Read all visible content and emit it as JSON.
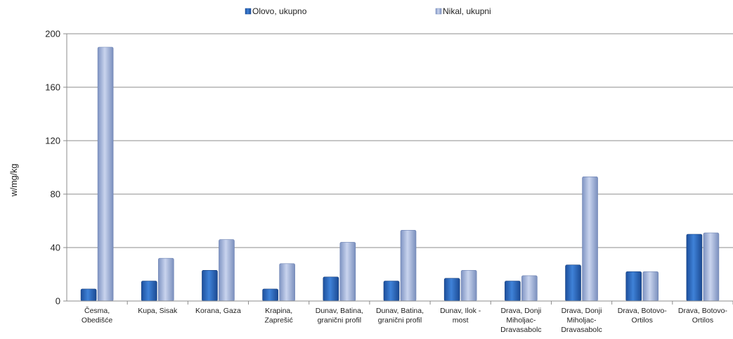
{
  "chart_data": {
    "type": "bar",
    "title": "",
    "xlabel": "",
    "ylabel": "w/mg/kg",
    "ylim": [
      0,
      200
    ],
    "yticks": [
      0,
      40,
      80,
      120,
      160,
      200
    ],
    "grid": true,
    "legend_position": "top",
    "categories": [
      [
        "Česma,",
        "Obedišće"
      ],
      [
        "Kupa, Sisak"
      ],
      [
        "Korana, Gaza"
      ],
      [
        "Krapina,",
        "Zaprešić"
      ],
      [
        "Dunav, Batina,",
        "granični profil"
      ],
      [
        "Dunav, Batina,",
        "granični profil"
      ],
      [
        "Dunav, Ilok -",
        "most"
      ],
      [
        "Drava, Donji",
        "Miholjac-",
        "Dravasabolc"
      ],
      [
        "Drava, Donji",
        "Miholjac-",
        "Dravasabolc"
      ],
      [
        "Drava, Botovo-",
        "Ortilos"
      ],
      [
        "Drava, Botovo-",
        "Ortilos"
      ]
    ],
    "series": [
      {
        "name": "Olovo, ukupno",
        "color": "#2e6bc4",
        "values": [
          9,
          15,
          23,
          9,
          18,
          15,
          17,
          15,
          27,
          22,
          50
        ]
      },
      {
        "name": "Nikal, ukupni",
        "color": "#9aaed8",
        "values": [
          190,
          32,
          46,
          28,
          44,
          53,
          23,
          19,
          93,
          22,
          51
        ]
      }
    ]
  }
}
